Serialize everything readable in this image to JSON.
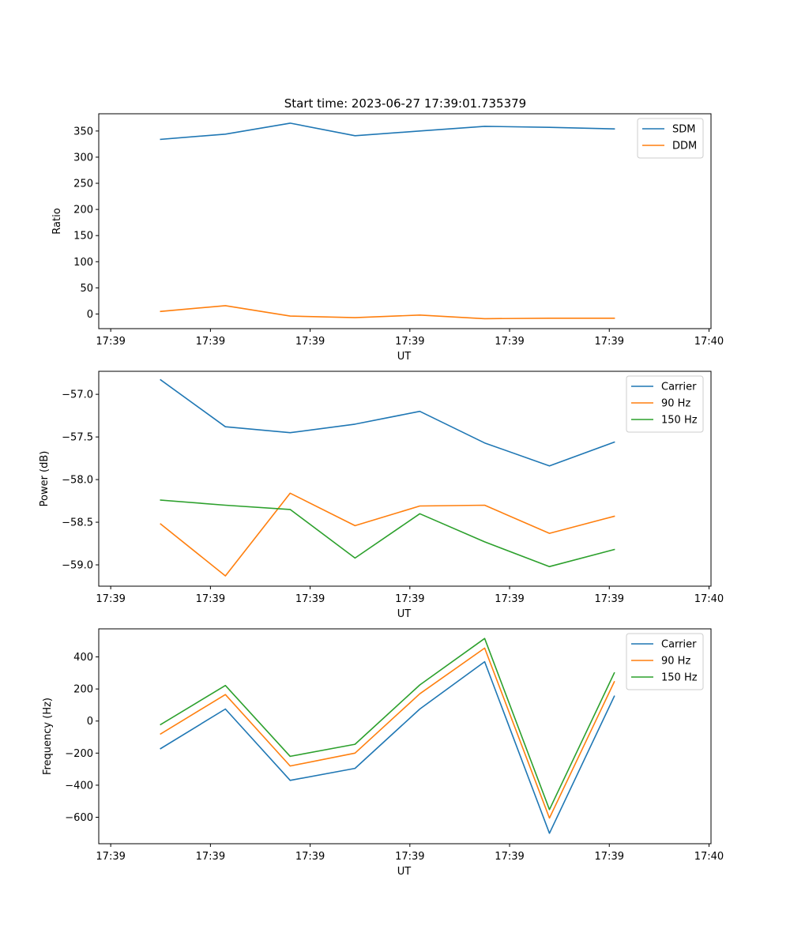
{
  "figure": {
    "title": "Start time: 2023-06-27 17:39:01.735379"
  },
  "colors": {
    "blue": "#1f77b4",
    "orange": "#ff7f0e",
    "green": "#2ca02c"
  },
  "chart_data": [
    {
      "type": "line",
      "xlabel": "UT",
      "ylabel": "Ratio",
      "xticks": [
        "17:39",
        "17:39",
        "17:39",
        "17:39",
        "17:39",
        "17:39",
        "17:40"
      ],
      "xlim": [
        -0.12,
        6.02
      ],
      "x": [
        0.5,
        1.15,
        1.8,
        2.45,
        3.1,
        3.75,
        4.4,
        5.05
      ],
      "ylim": [
        -28,
        383
      ],
      "yticks": [
        0,
        50,
        100,
        150,
        200,
        250,
        300,
        350
      ],
      "legend": "upper right",
      "series": [
        {
          "name": "SDM",
          "color": "#1f77b4",
          "values": [
            334,
            344,
            365,
            341,
            350,
            359,
            357,
            354
          ]
        },
        {
          "name": "DDM",
          "color": "#ff7f0e",
          "values": [
            5,
            16,
            -4,
            -7,
            -2,
            -9,
            -8,
            -8
          ]
        }
      ]
    },
    {
      "type": "line",
      "xlabel": "UT",
      "ylabel": "Power (dB)",
      "xticks": [
        "17:39",
        "17:39",
        "17:39",
        "17:39",
        "17:39",
        "17:39",
        "17:40"
      ],
      "xlim": [
        -0.12,
        6.02
      ],
      "x": [
        0.5,
        1.15,
        1.8,
        2.45,
        3.1,
        3.75,
        4.4,
        5.05
      ],
      "ylim": [
        -59.25,
        -56.73
      ],
      "yticks": [
        -59.0,
        -58.5,
        -58.0,
        -57.5,
        -57.0
      ],
      "ytick_labels": [
        "−59.0",
        "−58.5",
        "−58.0",
        "−57.5",
        "−57.0"
      ],
      "legend": "upper right",
      "series": [
        {
          "name": "Carrier",
          "color": "#1f77b4",
          "values": [
            -56.83,
            -57.38,
            -57.45,
            -57.35,
            -57.2,
            -57.57,
            -57.84,
            -57.56
          ]
        },
        {
          "name": "90 Hz",
          "color": "#ff7f0e",
          "values": [
            -58.52,
            -59.13,
            -58.16,
            -58.54,
            -58.31,
            -58.3,
            -58.63,
            -58.43
          ]
        },
        {
          "name": "150 Hz",
          "color": "#2ca02c",
          "values": [
            -58.24,
            -58.3,
            -58.35,
            -58.92,
            -58.4,
            -58.73,
            -59.02,
            -58.82
          ]
        }
      ]
    },
    {
      "type": "line",
      "xlabel": "UT",
      "ylabel": "Frequency (Hz)",
      "xticks": [
        "17:39",
        "17:39",
        "17:39",
        "17:39",
        "17:39",
        "17:39",
        "17:40"
      ],
      "xlim": [
        -0.12,
        6.02
      ],
      "x": [
        0.5,
        1.15,
        1.8,
        2.45,
        3.1,
        3.75,
        4.4,
        5.05
      ],
      "ylim": [
        -765,
        575
      ],
      "yticks": [
        -600,
        -400,
        -200,
        0,
        200,
        400
      ],
      "ytick_labels": [
        "−600",
        "−400",
        "−200",
        "0",
        "200",
        "400"
      ],
      "legend": "upper right",
      "series": [
        {
          "name": "Carrier",
          "color": "#1f77b4",
          "values": [
            -172,
            75,
            -370,
            -295,
            75,
            370,
            -700,
            155
          ]
        },
        {
          "name": "90 Hz",
          "color": "#ff7f0e",
          "values": [
            -80,
            165,
            -280,
            -200,
            170,
            455,
            -605,
            245
          ]
        },
        {
          "name": "150 Hz",
          "color": "#2ca02c",
          "values": [
            -22,
            222,
            -220,
            -145,
            225,
            515,
            -552,
            300
          ]
        }
      ]
    }
  ]
}
